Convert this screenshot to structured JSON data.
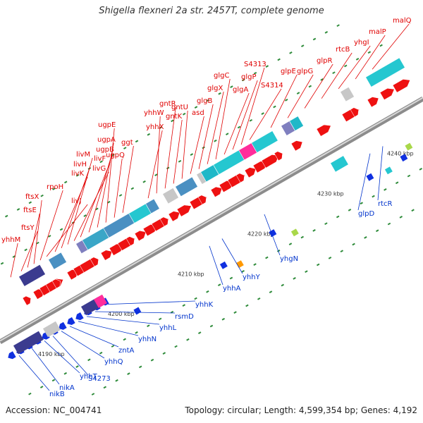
{
  "title": "Shigella flexneri 2a str. 2457T, complete genome",
  "footer": {
    "accession": "Accession: NC_004741",
    "summary": "Topology: circular; Length: 4,599,354 bp; Genes: 4,192"
  },
  "colors": {
    "forward_label": "#e00000",
    "reverse_label": "#0033cc",
    "backbone": "#9a9a9a"
  },
  "ticks": [
    "4190 kbp",
    "4200 kbp",
    "4210 kbp",
    "4220 kbp",
    "4230 kbp",
    "4240 kbp"
  ],
  "forward_genes": [
    "yhhM",
    "ftsY",
    "ftsE",
    "ftsX",
    "rpoH",
    "livJ",
    "livK",
    "livH",
    "livM",
    "livG",
    "livF",
    "ugpB",
    "ugpA",
    "ugpE",
    "ugpQ",
    "ggt",
    "yhhX",
    "yhhW",
    "gntR",
    "gntK",
    "gntU",
    "asd",
    "glgB",
    "glgX",
    "glgC",
    "glgA",
    "glgP",
    "S4313",
    "S4314",
    "glpE",
    "glpG",
    "glpR",
    "rtcB",
    "yhgI",
    "malP",
    "malQ"
  ],
  "reverse_genes": [
    "nikB",
    "nikA",
    "yhhT",
    "S4273",
    "yhhQ",
    "zntA",
    "yhhN",
    "yhhL",
    "rsmD",
    "yhhK",
    "yhhA",
    "yhhY",
    "yhgN",
    "glpD",
    "rtcR"
  ]
}
